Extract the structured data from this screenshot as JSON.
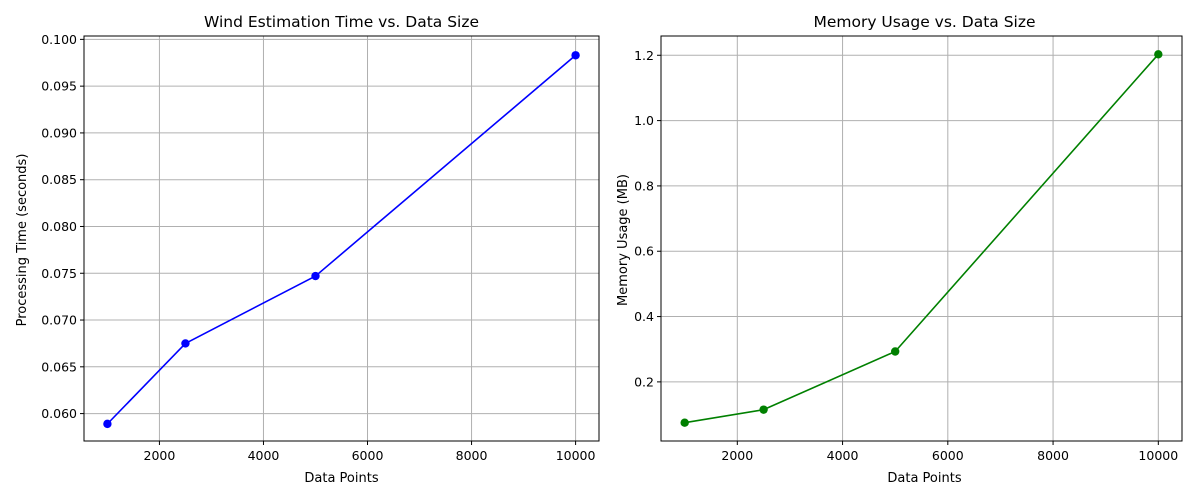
{
  "chart_data": [
    {
      "type": "line",
      "title": "Wind Estimation Time vs. Data Size",
      "xlabel": "Data Points",
      "ylabel": "Processing Time (seconds)",
      "x": [
        1000,
        2500,
        5000,
        10000
      ],
      "series": [
        {
          "values": [
            0.0589,
            0.0675,
            0.0747,
            0.0983
          ],
          "color": "#0000ff",
          "marker": "circle"
        }
      ],
      "xlim": [
        550,
        10450
      ],
      "ylim": [
        0.05707,
        0.10036
      ],
      "xticks": [
        2000,
        4000,
        6000,
        8000,
        10000
      ],
      "xtick_labels": [
        "2000",
        "4000",
        "6000",
        "8000",
        "10000"
      ],
      "yticks": [
        0.06,
        0.065,
        0.07,
        0.075,
        0.08,
        0.085,
        0.09,
        0.095,
        0.1
      ],
      "ytick_labels": [
        "0.060",
        "0.065",
        "0.070",
        "0.075",
        "0.080",
        "0.085",
        "0.090",
        "0.095",
        "0.100"
      ],
      "grid": true
    },
    {
      "type": "line",
      "title": "Memory Usage vs. Data Size",
      "xlabel": "Data Points",
      "ylabel": "Memory Usage (MB)",
      "x": [
        1000,
        2500,
        5000,
        10000
      ],
      "series": [
        {
          "values": [
            0.075,
            0.115,
            0.293,
            1.203
          ],
          "color": "#008000",
          "marker": "circle"
        }
      ],
      "xlim": [
        550,
        10450
      ],
      "ylim": [
        0.019,
        1.259
      ],
      "xticks": [
        2000,
        4000,
        6000,
        8000,
        10000
      ],
      "xtick_labels": [
        "2000",
        "4000",
        "6000",
        "8000",
        "10000"
      ],
      "yticks": [
        0.2,
        0.4,
        0.6,
        0.8,
        1.0,
        1.2
      ],
      "ytick_labels": [
        "0.2",
        "0.4",
        "0.6",
        "0.8",
        "1.0",
        "1.2"
      ],
      "grid": true
    }
  ]
}
